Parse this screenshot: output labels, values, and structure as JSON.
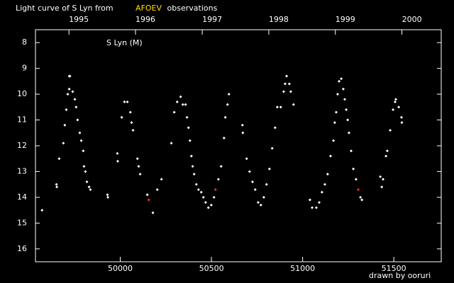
{
  "chart_data": {
    "type": "scatter",
    "title": [
      "Light curve of S Lyn from",
      "AFOEV",
      "observations"
    ],
    "title_colors": [
      "#ffffff",
      "#ffdd00",
      "#ffffff"
    ],
    "annotation": "S Lyn (M)",
    "footer": "drawn by ooruri",
    "footer_color": "#55bbff",
    "xlim": [
      49535,
      51760
    ],
    "xticks": [
      50000,
      50500,
      51000,
      51500
    ],
    "x2ticks": [
      {
        "value": 49718.5,
        "label": "1995"
      },
      {
        "value": 50083.5,
        "label": "1996"
      },
      {
        "value": 50449.5,
        "label": "1997"
      },
      {
        "value": 50814.5,
        "label": "1998"
      },
      {
        "value": 51179.5,
        "label": "1999"
      },
      {
        "value": 51544.5,
        "label": "2000"
      }
    ],
    "ylim": [
      7.5,
      16.5
    ],
    "y_inverted": true,
    "yticks": [
      8,
      9,
      10,
      11,
      12,
      13,
      14,
      15,
      16
    ],
    "series": [
      {
        "color": "#ffffff",
        "x": [
          49571,
          49650,
          49652,
          49665,
          49688,
          49696,
          49704,
          49712,
          49720,
          49724,
          49720,
          49739,
          49751,
          49758,
          49766,
          49778,
          49786,
          49797,
          49801,
          49809,
          49817,
          49829,
          49836,
          49930,
          49932,
          49984,
          49986,
          50008,
          50023,
          50039,
          50055,
          50062,
          50070,
          50094,
          50101,
          50109,
          50148,
          50179,
          50203,
          50226,
          50280,
          50296,
          50312,
          50331,
          50343,
          50358,
          50366,
          50374,
          50382,
          50390,
          50397,
          50405,
          50417,
          50429,
          50444,
          50456,
          50468,
          50483,
          50499,
          50514,
          50538,
          50553,
          50569,
          50576,
          50588,
          50596,
          50670,
          50672,
          50693,
          50709,
          50725,
          50740,
          50756,
          50771,
          50787,
          50802,
          50818,
          50833,
          50849,
          50861,
          50880,
          50896,
          50904,
          50912,
          50927,
          50935,
          50950,
          51040,
          51052,
          51075,
          51091,
          51106,
          51122,
          51137,
          51153,
          51169,
          51176,
          51184,
          51192,
          51200,
          51212,
          51223,
          51231,
          51239,
          51247,
          51254,
          51266,
          51278,
          51293,
          51317,
          51325,
          51426,
          51434,
          51441,
          51457,
          51464,
          51480,
          51496,
          51507,
          51511,
          51527,
          51542,
          51544
        ],
        "values": [
          14.5,
          13.5,
          13.6,
          12.5,
          11.9,
          11.2,
          10.6,
          10.0,
          9.3,
          9.3,
          9.8,
          9.9,
          10.2,
          10.5,
          11.0,
          11.5,
          11.8,
          12.2,
          12.8,
          13.0,
          13.4,
          13.6,
          13.7,
          13.9,
          14.0,
          12.3,
          12.6,
          10.9,
          10.3,
          10.3,
          10.7,
          11.1,
          11.4,
          12.5,
          12.8,
          13.1,
          13.9,
          14.6,
          13.7,
          13.3,
          11.9,
          10.7,
          10.3,
          10.1,
          10.4,
          10.4,
          10.9,
          11.3,
          11.8,
          12.4,
          12.8,
          13.1,
          13.5,
          13.7,
          13.8,
          14.0,
          14.2,
          14.4,
          14.3,
          14.0,
          13.3,
          12.8,
          11.7,
          10.9,
          10.4,
          10.0,
          11.2,
          11.5,
          12.5,
          13.0,
          13.4,
          13.7,
          14.2,
          14.3,
          14.0,
          13.5,
          12.9,
          12.1,
          11.3,
          10.5,
          10.5,
          9.9,
          9.6,
          9.3,
          9.6,
          9.9,
          10.4,
          14.1,
          14.4,
          14.4,
          14.2,
          13.8,
          13.5,
          13.1,
          12.4,
          11.8,
          11.1,
          10.7,
          10.0,
          9.5,
          9.4,
          9.8,
          10.2,
          10.6,
          11.0,
          11.5,
          12.2,
          12.9,
          13.3,
          14.0,
          14.1,
          13.2,
          13.6,
          13.3,
          12.4,
          12.2,
          11.4,
          10.6,
          10.3,
          10.2,
          10.5,
          10.9,
          11.1
        ]
      },
      {
        "color": "#ff3030",
        "x": [
          50156,
          50522,
          51305
        ],
        "values": [
          14.1,
          13.7,
          13.7
        ]
      }
    ]
  }
}
